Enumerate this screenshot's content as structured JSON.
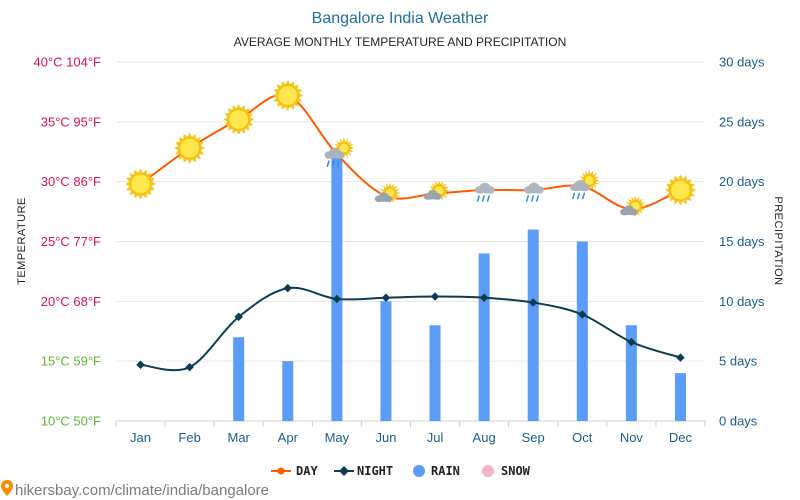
{
  "chart_data": {
    "type": "bar",
    "title": "Bangalore India Weather",
    "subtitle": "AVERAGE MONTHLY TEMPERATURE AND PRECIPITATION",
    "categories": [
      "Jan",
      "Feb",
      "Mar",
      "Apr",
      "May",
      "Jun",
      "Jul",
      "Aug",
      "Sep",
      "Oct",
      "Nov",
      "Dec"
    ],
    "series": [
      {
        "name": "DAY",
        "kind": "line",
        "axis": "temperature",
        "color": "#ff5a00",
        "values": [
          29.8,
          32.8,
          35.2,
          37.2,
          32.3,
          28.8,
          29.0,
          29.3,
          29.3,
          29.6,
          27.7,
          29.3
        ]
      },
      {
        "name": "NIGHT",
        "kind": "line",
        "axis": "temperature",
        "color": "#0d3b4f",
        "values": [
          14.7,
          14.5,
          18.7,
          21.1,
          20.2,
          20.3,
          20.4,
          20.3,
          19.9,
          18.9,
          16.6,
          15.3
        ]
      },
      {
        "name": "RAIN",
        "kind": "bar",
        "axis": "precipitation",
        "color": "#5b9cf6",
        "values": [
          0,
          0,
          7,
          5,
          22,
          10,
          8,
          14,
          16,
          15,
          8,
          4
        ]
      },
      {
        "name": "SNOW",
        "kind": "bar",
        "axis": "precipitation",
        "color": "#f7b6c8",
        "values": [
          0,
          0,
          0,
          0,
          0,
          0,
          0,
          0,
          0,
          0,
          0,
          0
        ]
      }
    ],
    "weather_icons": [
      "sun",
      "sun",
      "sun",
      "sun",
      "rain-cloud-sun",
      "cloud-sun",
      "cloud-sun",
      "rain-cloud",
      "rain-cloud",
      "rain-cloud-sun",
      "cloud-sun",
      "sun"
    ],
    "y_left": {
      "label": "TEMPERATURE",
      "ylim": [
        10,
        40
      ],
      "ticks": [
        {
          "value": 10,
          "label": "10°C 50°F",
          "color": "#5ab832"
        },
        {
          "value": 15,
          "label": "15°C 59°F",
          "color": "#5ab832"
        },
        {
          "value": 20,
          "label": "20°C 68°F",
          "color": "#e0134b"
        },
        {
          "value": 25,
          "label": "25°C 77°F",
          "color": "#e0134b"
        },
        {
          "value": 30,
          "label": "30°C 86°F",
          "color": "#e0134b"
        },
        {
          "value": 35,
          "label": "35°C 95°F",
          "color": "#e0134b"
        },
        {
          "value": 40,
          "label": "40°C 104°F",
          "color": "#e0134b"
        }
      ]
    },
    "y_right": {
      "label": "PRECIPITATION",
      "ylim": [
        0,
        30
      ],
      "ticks": [
        {
          "value": 0,
          "label": "0 days"
        },
        {
          "value": 5,
          "label": "5 days"
        },
        {
          "value": 10,
          "label": "10 days"
        },
        {
          "value": 15,
          "label": "15 days"
        },
        {
          "value": 20,
          "label": "20 days"
        },
        {
          "value": 25,
          "label": "25 days"
        },
        {
          "value": 30,
          "label": "30 days"
        }
      ],
      "color": "#1d5a8a"
    },
    "grid": true,
    "legend_position": "bottom-center"
  },
  "watermark": "hikersbay.com/climate/india/bangalore",
  "colors": {
    "day": "#ff5a00",
    "night": "#0d3b4f",
    "rain": "#5b9cf6",
    "snow": "#f7b6c8",
    "grid": "#e6e6e6",
    "x_tick": "#1d5a8a"
  }
}
